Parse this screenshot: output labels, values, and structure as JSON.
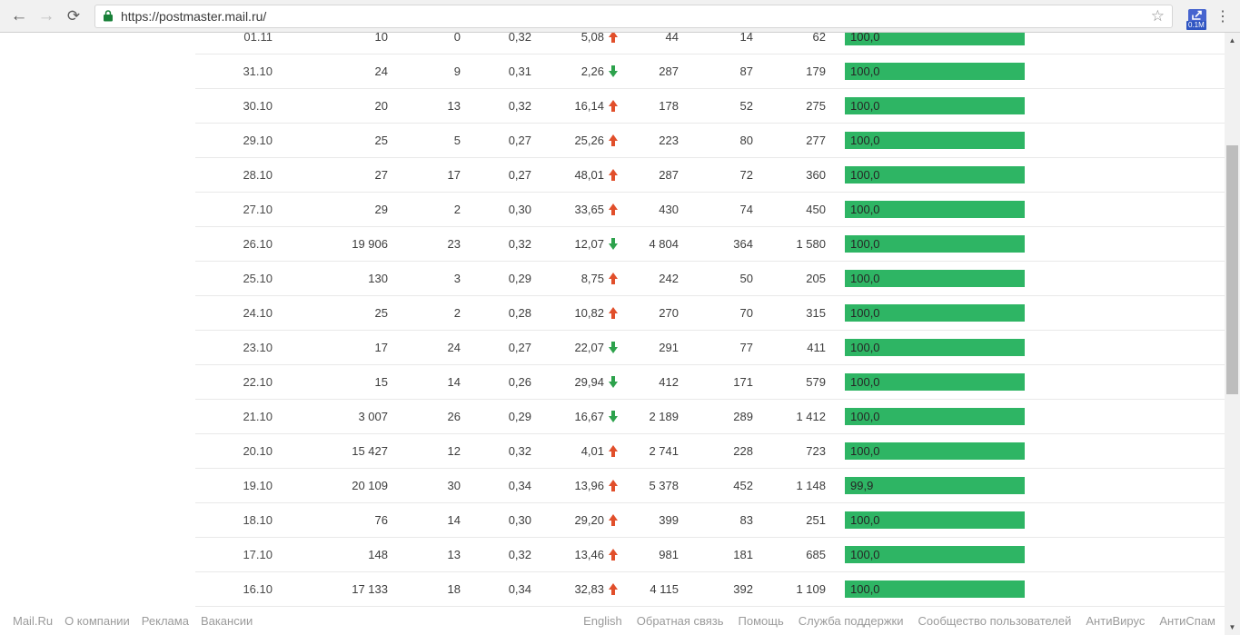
{
  "browser": {
    "url": "https://postmaster.mail.ru/",
    "back_icon": "←",
    "forward_icon": "→",
    "refresh_icon": "⟳",
    "star_icon": "☆",
    "menu_icon": "⋮",
    "extension_badge": "0.1M"
  },
  "scrollbar": {
    "up_icon": "▲",
    "down_icon": "▼"
  },
  "table": {
    "rows": [
      {
        "date": "01.11",
        "col1": "10",
        "col2": "0",
        "col3": "0,32",
        "pct": "5,08",
        "trend": "up",
        "col4": "44",
        "col5": "14",
        "col6": "62",
        "rate": "100,0",
        "rate_w": 100
      },
      {
        "date": "31.10",
        "col1": "24",
        "col2": "9",
        "col3": "0,31",
        "pct": "2,26",
        "trend": "down",
        "col4": "287",
        "col5": "87",
        "col6": "179",
        "rate": "100,0",
        "rate_w": 100
      },
      {
        "date": "30.10",
        "col1": "20",
        "col2": "13",
        "col3": "0,32",
        "pct": "16,14",
        "trend": "up",
        "col4": "178",
        "col5": "52",
        "col6": "275",
        "rate": "100,0",
        "rate_w": 100
      },
      {
        "date": "29.10",
        "col1": "25",
        "col2": "5",
        "col3": "0,27",
        "pct": "25,26",
        "trend": "up",
        "col4": "223",
        "col5": "80",
        "col6": "277",
        "rate": "100,0",
        "rate_w": 100
      },
      {
        "date": "28.10",
        "col1": "27",
        "col2": "17",
        "col3": "0,27",
        "pct": "48,01",
        "trend": "up",
        "col4": "287",
        "col5": "72",
        "col6": "360",
        "rate": "100,0",
        "rate_w": 100
      },
      {
        "date": "27.10",
        "col1": "29",
        "col2": "2",
        "col3": "0,30",
        "pct": "33,65",
        "trend": "up",
        "col4": "430",
        "col5": "74",
        "col6": "450",
        "rate": "100,0",
        "rate_w": 100
      },
      {
        "date": "26.10",
        "col1": "19 906",
        "col2": "23",
        "col3": "0,32",
        "pct": "12,07",
        "trend": "down",
        "col4": "4 804",
        "col5": "364",
        "col6": "1 580",
        "rate": "100,0",
        "rate_w": 100
      },
      {
        "date": "25.10",
        "col1": "130",
        "col2": "3",
        "col3": "0,29",
        "pct": "8,75",
        "trend": "up",
        "col4": "242",
        "col5": "50",
        "col6": "205",
        "rate": "100,0",
        "rate_w": 100
      },
      {
        "date": "24.10",
        "col1": "25",
        "col2": "2",
        "col3": "0,28",
        "pct": "10,82",
        "trend": "up",
        "col4": "270",
        "col5": "70",
        "col6": "315",
        "rate": "100,0",
        "rate_w": 100
      },
      {
        "date": "23.10",
        "col1": "17",
        "col2": "24",
        "col3": "0,27",
        "pct": "22,07",
        "trend": "down",
        "col4": "291",
        "col5": "77",
        "col6": "411",
        "rate": "100,0",
        "rate_w": 100
      },
      {
        "date": "22.10",
        "col1": "15",
        "col2": "14",
        "col3": "0,26",
        "pct": "29,94",
        "trend": "down",
        "col4": "412",
        "col5": "171",
        "col6": "579",
        "rate": "100,0",
        "rate_w": 100
      },
      {
        "date": "21.10",
        "col1": "3 007",
        "col2": "26",
        "col3": "0,29",
        "pct": "16,67",
        "trend": "down",
        "col4": "2 189",
        "col5": "289",
        "col6": "1 412",
        "rate": "100,0",
        "rate_w": 100
      },
      {
        "date": "20.10",
        "col1": "15 427",
        "col2": "12",
        "col3": "0,32",
        "pct": "4,01",
        "trend": "up",
        "col4": "2 741",
        "col5": "228",
        "col6": "723",
        "rate": "100,0",
        "rate_w": 100
      },
      {
        "date": "19.10",
        "col1": "20 109",
        "col2": "30",
        "col3": "0,34",
        "pct": "13,96",
        "trend": "up",
        "col4": "5 378",
        "col5": "452",
        "col6": "1 148",
        "rate": "99,9",
        "rate_w": 99.9
      },
      {
        "date": "18.10",
        "col1": "76",
        "col2": "14",
        "col3": "0,30",
        "pct": "29,20",
        "trend": "up",
        "col4": "399",
        "col5": "83",
        "col6": "251",
        "rate": "100,0",
        "rate_w": 100
      },
      {
        "date": "17.10",
        "col1": "148",
        "col2": "13",
        "col3": "0,32",
        "pct": "13,46",
        "trend": "up",
        "col4": "981",
        "col5": "181",
        "col6": "685",
        "rate": "100,0",
        "rate_w": 100
      },
      {
        "date": "16.10",
        "col1": "17 133",
        "col2": "18",
        "col3": "0,34",
        "pct": "32,83",
        "trend": "up",
        "col4": "4 115",
        "col5": "392",
        "col6": "1 109",
        "rate": "100,0",
        "rate_w": 100
      }
    ]
  },
  "footer": {
    "left": [
      "Mail.Ru",
      "О компании",
      "Реклама",
      "Вакансии"
    ],
    "right": [
      "English",
      "Обратная связь",
      "Помощь",
      "Служба поддержки",
      "Сообщество пользователей",
      "АнтиВирус",
      "АнтиСпам"
    ]
  },
  "colors": {
    "bar_green": "#2eb564",
    "trend_up": "#e14f2b",
    "trend_down": "#2da24c",
    "lock_green": "#188038",
    "badge_blue": "#2f55c2",
    "toolbar_bg": "#f1f1f1"
  }
}
